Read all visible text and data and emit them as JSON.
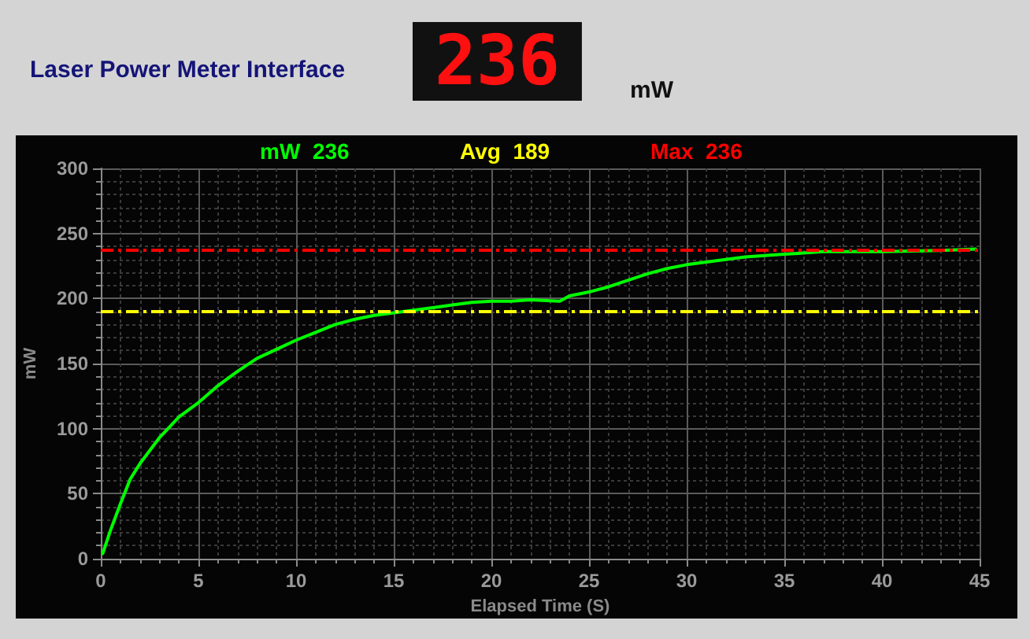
{
  "chart_data": {
    "type": "line",
    "title": "Laser Power Meter Interface",
    "xlabel": "Elapsed Time (S)",
    "ylabel": "mW",
    "annotations": [
      "236",
      "mW",
      "mW  236",
      "Avg  189",
      "Max  236"
    ],
    "xlim": [
      0,
      45
    ],
    "xticks": [
      0,
      5,
      10,
      15,
      20,
      25,
      30,
      35,
      40,
      45
    ],
    "ylim": [
      0,
      300
    ],
    "yticks": [
      0,
      50,
      100,
      150,
      200,
      250,
      300
    ],
    "grid": true,
    "marker": "none",
    "line_style": "solid",
    "ref_lines": [
      {
        "axis": "y",
        "value": 190,
        "color": "#ffff00",
        "line_style": "dashdot"
      },
      {
        "axis": "y",
        "value": 237,
        "color": "#ff0000",
        "line_style": "dashdot"
      }
    ],
    "series": [
      {
        "color": "#00ff00",
        "x": [
          0.1,
          0.5,
          1,
          1.5,
          2,
          2.5,
          3,
          3.5,
          4,
          5,
          6,
          7,
          8,
          9,
          10,
          11,
          12,
          13,
          14,
          15,
          16,
          17,
          18,
          19,
          20,
          21,
          22,
          23.5,
          24,
          25,
          26,
          27,
          28,
          29,
          30,
          31,
          32,
          33,
          34,
          35,
          37,
          40,
          43,
          44.8
        ],
        "values": [
          4,
          22,
          42,
          61,
          73,
          83,
          93,
          101,
          109,
          120,
          133,
          144,
          154,
          161,
          168,
          174,
          180,
          184,
          187,
          189,
          191,
          193,
          195,
          197,
          198,
          198,
          199,
          198,
          202,
          205,
          209,
          214,
          219,
          223,
          226,
          228,
          230,
          232,
          233,
          234,
          236,
          236,
          237,
          238
        ]
      }
    ]
  }
}
